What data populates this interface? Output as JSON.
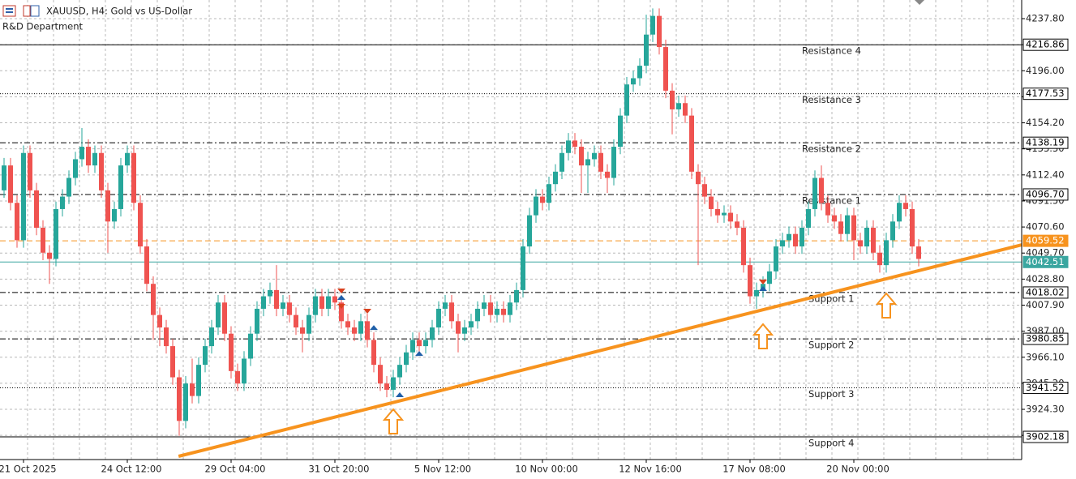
{
  "chart_data": {
    "type": "candlestick",
    "title": "XAUUSD, H4:  Gold vs US-Dollar",
    "subtitle": "R&D Department",
    "up_color": "#26a69a",
    "down_color": "#ef5350",
    "ylim": [
      3884,
      4252.76
    ],
    "yticks": [
      {
        "value": 4237.8,
        "label": "4237.80"
      },
      {
        "value": 4216.9,
        "label": "4216.90"
      },
      {
        "value": 4196,
        "label": "4196.00"
      },
      {
        "value": 4175.1,
        "label": "4175.10"
      },
      {
        "value": 4154.2,
        "label": "4154.20"
      },
      {
        "value": 4133.3,
        "label": "4133.30"
      },
      {
        "value": 4112.4,
        "label": "4112.40"
      },
      {
        "value": 4091.5,
        "label": "4091.50"
      },
      {
        "value": 4070.6,
        "label": "4070.60"
      },
      {
        "value": 4049.7,
        "label": "4049.70"
      },
      {
        "value": 4028.8,
        "label": "4028.80"
      },
      {
        "value": 4007.9,
        "label": "4007.90"
      },
      {
        "value": 3987,
        "label": "3987.00"
      },
      {
        "value": 3966.1,
        "label": "3966.10"
      },
      {
        "value": 3945.2,
        "label": "3945.20"
      },
      {
        "value": 3924.3,
        "label": "3924.30"
      },
      {
        "value": 3903.4,
        "label": "3903.40"
      }
    ],
    "grid": true,
    "categories": [
      null,
      null,
      null,
      "21 Oct 2025",
      null,
      null,
      null,
      null,
      null,
      null,
      null,
      null,
      null,
      null,
      null,
      null,
      null,
      null,
      null,
      "24 Oct 12:00",
      null,
      null,
      null,
      null,
      null,
      null,
      null,
      null,
      null,
      null,
      null,
      null,
      null,
      null,
      null,
      "29 Oct 04:00",
      null,
      null,
      null,
      null,
      null,
      null,
      null,
      null,
      null,
      null,
      null,
      null,
      null,
      null,
      null,
      "31 Oct 20:00",
      null,
      null,
      null,
      null,
      null,
      null,
      null,
      null,
      null,
      null,
      null,
      null,
      null,
      null,
      null,
      "5 Nov 12:00",
      null,
      null,
      null,
      null,
      null,
      null,
      null,
      null,
      null,
      null,
      null,
      null,
      null,
      null,
      null,
      "10 Nov 00:00",
      null,
      null,
      null,
      null,
      null,
      null,
      null,
      null,
      null,
      null,
      null,
      null,
      null,
      null,
      null,
      "12 Nov 16:00",
      null,
      null,
      null,
      null,
      null,
      null,
      null,
      null,
      null,
      null,
      null,
      null,
      null,
      null,
      null,
      "17 Nov 08:00",
      null,
      null,
      null,
      null,
      null,
      null,
      null,
      null,
      null,
      null,
      null,
      null,
      null,
      null,
      null,
      "20 Nov 00:00",
      null,
      null,
      null,
      null,
      null,
      null,
      null,
      null,
      null,
      null
    ],
    "ohlc": [
      [
        4100,
        4126,
        4094,
        4120
      ],
      [
        4120,
        4126,
        4084,
        4090
      ],
      [
        4090,
        4096,
        4054,
        4060
      ],
      [
        4060,
        4136,
        4054,
        4130
      ],
      [
        4130,
        4136,
        4094,
        4100
      ],
      [
        4100,
        4106,
        4064,
        4070
      ],
      [
        4070,
        4076,
        4044,
        4050
      ],
      [
        4050,
        4056,
        4025,
        4045
      ],
      [
        4045,
        4091,
        4039,
        4085
      ],
      [
        4085,
        4101,
        4079,
        4095
      ],
      [
        4095,
        4116,
        4089,
        4110
      ],
      [
        4110,
        4131,
        4104,
        4125
      ],
      [
        4125,
        4150,
        4119,
        4135
      ],
      [
        4135,
        4141,
        4114,
        4120
      ],
      [
        4120,
        4136,
        4114,
        4130
      ],
      [
        4130,
        4136,
        4094,
        4100
      ],
      [
        4100,
        4106,
        4050,
        4075
      ],
      [
        4075,
        4091,
        4069,
        4085
      ],
      [
        4085,
        4126,
        4079,
        4120
      ],
      [
        4120,
        4136,
        4114,
        4130
      ],
      [
        4130,
        4136,
        4084,
        4090
      ],
      [
        4090,
        4096,
        4049,
        4055
      ],
      [
        4055,
        4061,
        4019,
        4025
      ],
      [
        4025,
        4031,
        3980,
        4000
      ],
      [
        4000,
        4006,
        3975,
        3990
      ],
      [
        3990,
        3996,
        3969,
        3975
      ],
      [
        3975,
        3981,
        3944,
        3950
      ],
      [
        3950,
        3956,
        3903,
        3915
      ],
      [
        3915,
        3951,
        3909,
        3945
      ],
      [
        3945,
        3965,
        3929,
        3935
      ],
      [
        3935,
        3966,
        3929,
        3960
      ],
      [
        3960,
        3981,
        3954,
        3975
      ],
      [
        3975,
        3996,
        3969,
        3990
      ],
      [
        3990,
        4016,
        3984,
        4010
      ],
      [
        4010,
        4016,
        3979,
        3985
      ],
      [
        3985,
        3991,
        3949,
        3955
      ],
      [
        3955,
        3961,
        3939,
        3945
      ],
      [
        3945,
        3971,
        3939,
        3965
      ],
      [
        3965,
        3991,
        3959,
        3985
      ],
      [
        3985,
        4011,
        3979,
        4005
      ],
      [
        4005,
        4021,
        3999,
        4015
      ],
      [
        4015,
        4026,
        4009,
        4020
      ],
      [
        4020,
        4040,
        3999,
        4005
      ],
      [
        4005,
        4016,
        3999,
        4010
      ],
      [
        4010,
        4016,
        3994,
        4000
      ],
      [
        4000,
        4006,
        3984,
        3990
      ],
      [
        3990,
        3996,
        3970,
        3985
      ],
      [
        3985,
        4006,
        3979,
        4000
      ],
      [
        4000,
        4021,
        3994,
        4015
      ],
      [
        4015,
        4021,
        3999,
        4005
      ],
      [
        4005,
        4021,
        3999,
        4015
      ],
      [
        4015,
        4021,
        4004,
        4010
      ],
      [
        4010,
        4016,
        3989,
        3995
      ],
      [
        3995,
        4001,
        3984,
        3990
      ],
      [
        3990,
        3996,
        3979,
        3985
      ],
      [
        3985,
        4001,
        3979,
        3995
      ],
      [
        3995,
        4001,
        3974,
        3980
      ],
      [
        3980,
        3986,
        3954,
        3960
      ],
      [
        3960,
        3966,
        3939,
        3945
      ],
      [
        3945,
        3951,
        3934,
        3940
      ],
      [
        3940,
        3956,
        3934,
        3950
      ],
      [
        3950,
        3966,
        3944,
        3960
      ],
      [
        3960,
        3976,
        3954,
        3970
      ],
      [
        3970,
        3986,
        3964,
        3980
      ],
      [
        3980,
        3986,
        3969,
        3975
      ],
      [
        3975,
        3986,
        3969,
        3980
      ],
      [
        3980,
        3996,
        3974,
        3990
      ],
      [
        3990,
        4011,
        3984,
        4005
      ],
      [
        4005,
        4016,
        3999,
        4010
      ],
      [
        4010,
        4016,
        3989,
        3995
      ],
      [
        3995,
        4001,
        3970,
        3985
      ],
      [
        3985,
        3996,
        3979,
        3990
      ],
      [
        3990,
        4001,
        3984,
        3995
      ],
      [
        3995,
        4011,
        3989,
        4005
      ],
      [
        4005,
        4016,
        3999,
        4010
      ],
      [
        4010,
        4016,
        3994,
        4000
      ],
      [
        4000,
        4011,
        3994,
        4005
      ],
      [
        4005,
        4011,
        3994,
        4000
      ],
      [
        4000,
        4016,
        3994,
        4010
      ],
      [
        4010,
        4026,
        4004,
        4020
      ],
      [
        4020,
        4061,
        4014,
        4055
      ],
      [
        4055,
        4086,
        4049,
        4080
      ],
      [
        4080,
        4101,
        4074,
        4095
      ],
      [
        4095,
        4101,
        4084,
        4090
      ],
      [
        4090,
        4111,
        4084,
        4105
      ],
      [
        4105,
        4121,
        4099,
        4115
      ],
      [
        4115,
        4136,
        4109,
        4130
      ],
      [
        4130,
        4146,
        4124,
        4140
      ],
      [
        4140,
        4146,
        4129,
        4135
      ],
      [
        4135,
        4141,
        4098,
        4120
      ],
      [
        4120,
        4131,
        4098,
        4125
      ],
      [
        4125,
        4136,
        4119,
        4130
      ],
      [
        4130,
        4136,
        4109,
        4115
      ],
      [
        4115,
        4121,
        4098,
        4110
      ],
      [
        4110,
        4141,
        4104,
        4135
      ],
      [
        4135,
        4166,
        4129,
        4160
      ],
      [
        4160,
        4191,
        4154,
        4185
      ],
      [
        4185,
        4196,
        4179,
        4190
      ],
      [
        4190,
        4206,
        4184,
        4200
      ],
      [
        4200,
        4241,
        4194,
        4225
      ],
      [
        4225,
        4246,
        4219,
        4240
      ],
      [
        4240,
        4246,
        4209,
        4215
      ],
      [
        4215,
        4221,
        4174,
        4180
      ],
      [
        4180,
        4186,
        4145,
        4165
      ],
      [
        4165,
        4176,
        4159,
        4170
      ],
      [
        4170,
        4176,
        4154,
        4160
      ],
      [
        4160,
        4166,
        4109,
        4115
      ],
      [
        4115,
        4121,
        4040,
        4105
      ],
      [
        4105,
        4111,
        4089,
        4095
      ],
      [
        4095,
        4101,
        4079,
        4085
      ],
      [
        4085,
        4091,
        4074,
        4080
      ],
      [
        4080,
        4088,
        4074,
        4082
      ],
      [
        4082,
        4088,
        4069,
        4075
      ],
      [
        4075,
        4081,
        4064,
        4070
      ],
      [
        4070,
        4076,
        4034,
        4040
      ],
      [
        4040,
        4046,
        4009,
        4015
      ],
      [
        4015,
        4026,
        4005,
        4020
      ],
      [
        4020,
        4031,
        4014,
        4025
      ],
      [
        4025,
        4041,
        4019,
        4035
      ],
      [
        4035,
        4061,
        4029,
        4055
      ],
      [
        4055,
        4066,
        4049,
        4060
      ],
      [
        4060,
        4071,
        4054,
        4065
      ],
      [
        4065,
        4071,
        4049,
        4055
      ],
      [
        4055,
        4076,
        4049,
        4070
      ],
      [
        4070,
        4091,
        4064,
        4085
      ],
      [
        4085,
        4116,
        4079,
        4110
      ],
      [
        4110,
        4120,
        4084,
        4090
      ],
      [
        4090,
        4096,
        4074,
        4080
      ],
      [
        4080,
        4086,
        4069,
        4075
      ],
      [
        4075,
        4081,
        4059,
        4065
      ],
      [
        4065,
        4086,
        4059,
        4080
      ],
      [
        4080,
        4086,
        4044,
        4060
      ],
      [
        4060,
        4066,
        4049,
        4055
      ],
      [
        4055,
        4076,
        4049,
        4070
      ],
      [
        4070,
        4076,
        4044,
        4050
      ],
      [
        4050,
        4056,
        4034,
        4040
      ],
      [
        4040,
        4066,
        4034,
        4060
      ],
      [
        4060,
        4081,
        4054,
        4075
      ],
      [
        4075,
        4096,
        4069,
        4090
      ],
      [
        4090,
        4096,
        4079,
        4085
      ],
      [
        4085,
        4091,
        4049,
        4055
      ],
      [
        4055,
        4061,
        4039,
        4045
      ]
    ],
    "levels": [
      {
        "name": "Resistance 4",
        "value": 4216.86,
        "style": "solid",
        "color": "#000000"
      },
      {
        "name": "Resistance 3",
        "value": 4177.53,
        "style": "dotted",
        "color": "#000000"
      },
      {
        "name": "Resistance 2",
        "value": 4138.19,
        "style": "dashdot",
        "color": "#000000"
      },
      {
        "name": "Resistance 1",
        "value": 4096.7,
        "value_label": "4096.70",
        "style": "dashdot",
        "color": "#000000"
      },
      {
        "value": 4059.52,
        "style": "dashed",
        "color": "#f7931e"
      },
      {
        "value": 4042.51,
        "style": "solid",
        "color": "#3aa6a0"
      },
      {
        "name": "Support 1",
        "value": 4018.02,
        "style": "dashdot",
        "color": "#000000"
      },
      {
        "name": "Support 2",
        "value": 3980.85,
        "style": "dashdot",
        "color": "#000000"
      },
      {
        "name": "Support 3",
        "value": 3941.52,
        "style": "dotted",
        "color": "#000000"
      },
      {
        "name": "Support 4",
        "value": 3902.18,
        "style": "solid",
        "color": "#000000"
      }
    ],
    "trendline": {
      "x": [
        26.9,
        156.9
      ],
      "y": [
        3886.6,
        4056.3
      ],
      "color": "#f7931e"
    },
    "arrows": [
      {
        "x": 60,
        "y": 3924.3
      },
      {
        "x": 117,
        "y": 3992.6
      },
      {
        "x": 136,
        "y": 4017.3
      }
    ],
    "arrow_color": "#f7931e",
    "markers": [
      {
        "x": 52,
        "y": 4019.9,
        "dir": "down",
        "color": "#d9411e"
      },
      {
        "x": 52,
        "y": 4013.4,
        "dir": "up",
        "color": "#1f5fa8"
      },
      {
        "x": 52,
        "y": 4007.6,
        "dir": "down",
        "color": "#d9411e"
      },
      {
        "x": 56,
        "y": 4003.7,
        "dir": "down",
        "color": "#d9411e"
      },
      {
        "x": 57,
        "y": 3989.3,
        "dir": "up",
        "color": "#1f5fa8"
      },
      {
        "x": 61,
        "y": 3935.4,
        "dir": "up",
        "color": "#1f5fa8"
      },
      {
        "x": 64,
        "y": 3968.5,
        "dir": "up",
        "color": "#1f5fa8"
      },
      {
        "x": 117,
        "y": 4027.1,
        "dir": "down",
        "color": "#d9411e"
      },
      {
        "x": 117,
        "y": 4020.6,
        "dir": "up",
        "color": "#1f5fa8"
      }
    ]
  }
}
